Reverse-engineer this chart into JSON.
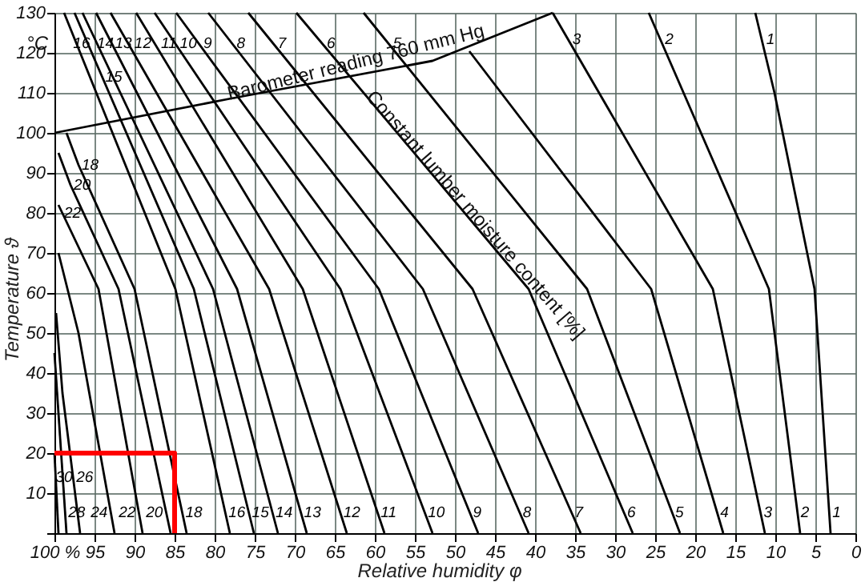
{
  "chart_data": {
    "type": "line",
    "xlabel": "Relative humidity φ",
    "ylabel": "Temperature ϑ",
    "xlim": [
      100,
      0
    ],
    "ylim": [
      0,
      130
    ],
    "xticks": [
      {
        "value": 100,
        "label": "100 %"
      },
      95,
      90,
      85,
      80,
      75,
      70,
      65,
      60,
      55,
      50,
      45,
      40,
      35,
      30,
      25,
      20,
      15,
      10,
      5,
      0
    ],
    "yticks": [
      {
        "value": 0,
        "label": null
      },
      10,
      20,
      30,
      40,
      50,
      60,
      70,
      80,
      90,
      100,
      110,
      120,
      130
    ],
    "grid": true,
    "marker": "none",
    "line_style": "solid",
    "series": [
      {
        "name": "1",
        "color": "#000000",
        "x": [
          3.1,
          5.1,
          10.1,
          12.5
        ],
        "values": [
          0,
          61,
          110,
          130
        ]
      },
      {
        "name": "2",
        "color": "#000000",
        "x": [
          6.9,
          10.8,
          25.8
        ],
        "values": [
          0,
          61,
          130
        ]
      },
      {
        "name": "3",
        "color": "#000000",
        "x": [
          11.3,
          17.8,
          37.8
        ],
        "values": [
          0,
          61,
          130
        ]
      },
      {
        "name": "4",
        "color": "#000000",
        "x": [
          16.5,
          25.5,
          48.2
        ],
        "values": [
          0,
          61,
          120.4
        ]
      },
      {
        "name": "5",
        "color": "#000000",
        "x": [
          21.9,
          33.5,
          61.4
        ],
        "values": [
          0,
          61,
          130
        ]
      },
      {
        "name": "6",
        "color": "#000000",
        "x": [
          27.8,
          40.8,
          69.8
        ],
        "values": [
          0,
          61,
          130
        ]
      },
      {
        "name": "7",
        "color": "#000000",
        "x": [
          34.3,
          47.8,
          75.8
        ],
        "values": [
          0,
          61,
          130
        ]
      },
      {
        "name": "8",
        "color": "#000000",
        "x": [
          40.8,
          54.0,
          80.8
        ],
        "values": [
          0,
          61,
          130
        ]
      },
      {
        "name": "9",
        "color": "#000000",
        "x": [
          47.1,
          59.5,
          84.8
        ],
        "values": [
          0,
          61,
          130
        ]
      },
      {
        "name": "10",
        "color": "#000000",
        "x": [
          52.8,
          64.3,
          87.5
        ],
        "values": [
          0,
          61,
          130
        ]
      },
      {
        "name": "11",
        "color": "#000000",
        "x": [
          58.8,
          69.0,
          89.8
        ],
        "values": [
          0,
          61,
          130
        ]
      },
      {
        "name": "12",
        "color": "#000000",
        "x": [
          63.5,
          73.2,
          93.0
        ],
        "values": [
          0,
          61,
          130
        ]
      },
      {
        "name": "13",
        "color": "#000000",
        "x": [
          68.5,
          77.2,
          94.8
        ],
        "values": [
          0,
          61,
          130
        ]
      },
      {
        "name": "14",
        "color": "#000000",
        "x": [
          72.1,
          80.2,
          96.5
        ],
        "values": [
          0,
          61,
          130
        ]
      },
      {
        "name": "15",
        "color": "#000000",
        "x": [
          75.1,
          82.6,
          97.5
        ],
        "values": [
          0,
          61,
          130
        ]
      },
      {
        "name": "16",
        "color": "#000000",
        "x": [
          78.1,
          84.9,
          98.8
        ],
        "values": [
          0,
          61,
          130
        ]
      },
      {
        "name": "18",
        "color": "#000000",
        "x": [
          83.5,
          90.0,
          97.0,
          98.5
        ],
        "values": [
          0,
          61,
          92,
          100
        ]
      },
      {
        "name": "20",
        "color": "#000000",
        "x": [
          85.5,
          92.0,
          98.0,
          99.5
        ],
        "values": [
          0,
          61,
          87,
          95
        ]
      },
      {
        "name": "22",
        "color": "#000000",
        "x": [
          89.0,
          94.5,
          99.5
        ],
        "values": [
          0,
          61,
          82
        ]
      },
      {
        "name": "24",
        "color": "#000000",
        "x": [
          92.5,
          97.0,
          99.5
        ],
        "values": [
          0,
          50,
          70
        ]
      },
      {
        "name": "26",
        "color": "#000000",
        "x": [
          96.8,
          99.0,
          99.8
        ],
        "values": [
          0,
          35,
          55
        ]
      },
      {
        "name": "28",
        "color": "#000000",
        "x": [
          98.5,
          99.5,
          100
        ],
        "values": [
          0,
          30,
          45
        ]
      },
      {
        "name": "30",
        "color": "#000000",
        "x": [
          99.5,
          100
        ],
        "values": [
          0,
          20
        ]
      },
      {
        "color": "#000000",
        "x": [
          100,
          78.2,
          52.8,
          37.8
        ],
        "values": [
          100,
          108.5,
          118,
          130
        ]
      },
      {
        "color": "#ff0000",
        "x": [
          100,
          85,
          85
        ],
        "values": [
          20,
          20,
          0
        ]
      }
    ],
    "annotations": [
      "°C",
      "Constant lumber moisture content [%]",
      {
        "text": "Barometer reading 760 mm Hg",
        "x": 62,
        "y": 114.6
      }
    ]
  }
}
